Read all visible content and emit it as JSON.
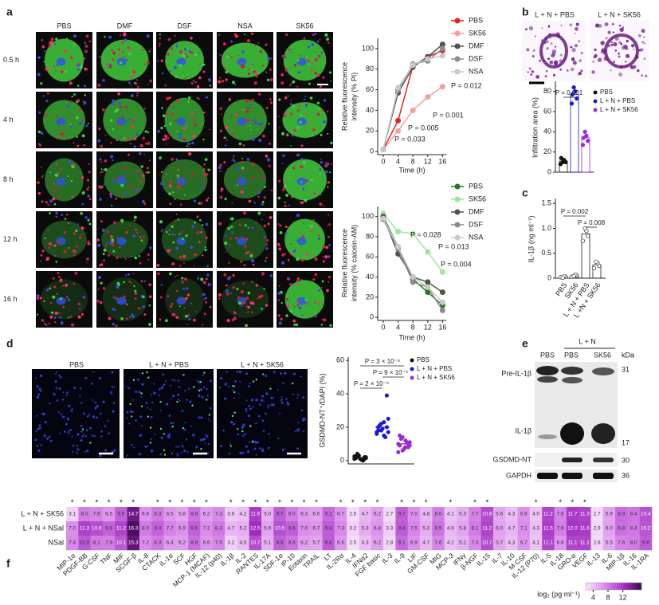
{
  "panel_labels": [
    "a",
    "b",
    "c",
    "d",
    "e",
    "f"
  ],
  "panel_a": {
    "columns": [
      "PBS",
      "DMF",
      "DSF",
      "NSA",
      "SK56"
    ],
    "rows": [
      "0.5 h",
      "4 h",
      "8 h",
      "12 h",
      "16 h"
    ]
  },
  "panel_b": {
    "images": [
      "L + N + PBS",
      "L + N + SK56"
    ]
  },
  "panel_d": {
    "images": [
      "PBS",
      "L + N + PBS",
      "L + N + SK56"
    ]
  },
  "panel_e": {
    "lanes": [
      "PBS",
      "PBS",
      "SK56"
    ],
    "group": "L + N",
    "unit": "kDa",
    "bands": [
      "Pre-IL-1β",
      "IL-1β",
      "GSDMD-NT",
      "GAPDH"
    ],
    "markers": [
      31,
      17,
      30,
      36
    ]
  },
  "chart_data": [
    {
      "type": "line",
      "y_label": [
        "Relative fluorescence",
        "intensity (% PI)"
      ],
      "x_label": "Time (h)",
      "x": [
        0,
        4,
        8,
        12,
        16
      ],
      "xlim": [
        -1.5,
        17
      ],
      "ylim": [
        -3,
        110
      ],
      "xticks": [
        0,
        4,
        8,
        12,
        16
      ],
      "yticks": [
        0,
        20,
        40,
        60,
        80,
        100
      ],
      "series": [
        {
          "name": "PBS",
          "color": "#e8231f",
          "values": [
            2,
            30,
            83,
            92,
            98
          ]
        },
        {
          "name": "SK56",
          "color": "#f4a09a",
          "values": [
            2,
            20,
            40,
            53,
            63
          ]
        },
        {
          "name": "DMF",
          "color": "#505050",
          "values": [
            2,
            57,
            82,
            92,
            104
          ]
        },
        {
          "name": "DSF",
          "color": "#8c8c8c",
          "values": [
            2,
            60,
            85,
            88,
            100
          ]
        },
        {
          "name": "NSA",
          "color": "#c8c8c8",
          "values": [
            2,
            62,
            84,
            90,
            93
          ]
        }
      ],
      "annotations": [
        "P = 0.012",
        "P = 0.001",
        "P = 0.005",
        "P = 0.033"
      ]
    },
    {
      "type": "line",
      "y_label": [
        "Relative fluorescence",
        "intensity (% calcein-AM)"
      ],
      "x_label": "Time (h)",
      "x": [
        0,
        4,
        8,
        12,
        16
      ],
      "xlim": [
        -1.5,
        17
      ],
      "ylim": [
        -3,
        110
      ],
      "xticks": [
        0,
        4,
        8,
        12,
        16
      ],
      "yticks": [
        0,
        20,
        40,
        60,
        80,
        100
      ],
      "series": [
        {
          "name": "PBS",
          "color": "#1f7a1f",
          "values": [
            100,
            70,
            38,
            25,
            12
          ]
        },
        {
          "name": "SK56",
          "color": "#9ee89a",
          "values": [
            103,
            85,
            83,
            65,
            45
          ]
        },
        {
          "name": "DMF",
          "color": "#505050",
          "values": [
            100,
            63,
            40,
            35,
            25
          ]
        },
        {
          "name": "DSF",
          "color": "#8c8c8c",
          "values": [
            97,
            68,
            35,
            30,
            7
          ]
        },
        {
          "name": "NSA",
          "color": "#c8c8c8",
          "values": [
            98,
            70,
            40,
            30,
            15
          ]
        }
      ],
      "annotations": [
        "P = 0.028",
        "P = 0.013",
        "P = 0.004"
      ]
    },
    {
      "type": "strip",
      "y_label": "Infiltration area (%)",
      "ylim": [
        0,
        90
      ],
      "yticks": [
        0,
        20,
        40,
        60,
        80
      ],
      "bars": true,
      "series": [
        {
          "name": "PBS",
          "color": "#111111",
          "values": [
            8,
            10,
            12,
            10,
            14
          ],
          "mean": 11
        },
        {
          "name": "L + N + PBS",
          "color": "#1a1ad6",
          "values": [
            68,
            73,
            80,
            84,
            77
          ],
          "mean": 77
        },
        {
          "name": "L + N + SK56",
          "color": "#9b2bd6",
          "values": [
            27,
            31,
            36,
            40,
            34
          ],
          "mean": 34
        }
      ],
      "annotations": [
        "P = 0.001"
      ]
    },
    {
      "type": "strip",
      "y_label": "IL-1β (ng ml⁻¹)",
      "ylim": [
        0,
        1.6
      ],
      "yticks": [
        0,
        0.5,
        {
          "value": 1,
          "label": "1.0"
        },
        1.5
      ],
      "bars": true,
      "categories": [
        "PBS",
        "SK56",
        "L + N + PBS",
        "L +N + SK56"
      ],
      "series": [
        {
          "color": "#ffffff",
          "values": [
            0.02,
            0.03,
            0.04,
            0.01
          ],
          "mean": 0.03
        },
        {
          "color": "#ffffff",
          "values": [
            0.03,
            0.05,
            0.07,
            0.04
          ],
          "mean": 0.05
        },
        {
          "color": "#ffffff",
          "values": [
            0.75,
            0.85,
            0.95,
            1.0
          ],
          "mean": 0.89
        },
        {
          "color": "#ffffff",
          "values": [
            0.2,
            0.25,
            0.3,
            0.33
          ],
          "mean": 0.27
        }
      ],
      "annotations": [
        "P = 0.002",
        "P = 0.008"
      ]
    },
    {
      "type": "strip",
      "y_label": "GSDMD-NT⁺/DAPI (%)",
      "ylim": [
        -2,
        62
      ],
      "yticks": [
        0,
        20,
        40,
        60
      ],
      "bars": false,
      "series": [
        {
          "name": "PBS",
          "color": "#111111",
          "values": [
            1,
            2,
            0.5,
            3,
            1.5,
            2,
            0,
            1,
            4,
            2.5,
            1,
            0.5,
            3,
            2,
            1.5
          ],
          "mean": 1.7
        },
        {
          "name": "L + N + PBS",
          "color": "#1a1ad6",
          "values": [
            17,
            20,
            15,
            22,
            18,
            25,
            14,
            19,
            21,
            16,
            39,
            23,
            18,
            20,
            17
          ],
          "mean": 20
        },
        {
          "name": "L + N + SK56",
          "color": "#9b2bd6",
          "values": [
            10,
            8,
            12,
            6,
            15,
            9,
            11,
            7,
            13,
            5,
            10,
            8,
            14,
            9,
            11
          ],
          "mean": 10
        }
      ],
      "annotations": [
        "P = 3 × 10⁻⁶",
        "P = 9 × 10⁻⁵",
        "P = 2 × 10⁻⁵"
      ]
    },
    {
      "type": "heatmap",
      "rows": [
        "L + N + SK56",
        "L + N + NSal",
        "NSal"
      ],
      "columns": [
        "MIP-1α",
        "PDGF-BB",
        "G-CSF",
        "TNF",
        "MIF",
        "SCGF-β",
        "IL-8",
        "CTACK",
        "IL-1α",
        "SCF",
        "HGF",
        "MCP-1 (MCAF)",
        "IL-12 (p40)",
        "IL-1β",
        "IL-2",
        "RANTES",
        "IL-17A",
        "SDF-1α",
        "IP-10",
        "Eotaxin",
        "TRAIL",
        "LT",
        "IL-2Rα",
        "IL-4",
        "IFNα2",
        "FGF basic",
        "IL-3",
        "IL-9",
        "LIF",
        "GM-CSF",
        "MIG",
        "MCP-3",
        "IFNγ",
        "β-NGF",
        "IL-15",
        "IL-7",
        "IL-10",
        "M-CSF",
        "IL-12 (P70)",
        "IL-5",
        "IL-18",
        "GRO-α",
        "VEGF",
        "IL-13",
        "IL-6",
        "MIP-1β",
        "IL-16",
        "IL-1RA"
      ],
      "values": [
        [
          3.1,
          8.0,
          7.6,
          6.5,
          9.5,
          14.7,
          6.8,
          8.3,
          6.5,
          5.8,
          8.6,
          6.2,
          7.3,
          3.8,
          4.2,
          11.6,
          5.0,
          9.7,
          8.0,
          6.3,
          6.0,
          9.1,
          6.7,
          2.5,
          4.7,
          6.2,
          2.7,
          9.7,
          7.0,
          4.8,
          8.0,
          4.1,
          5.3,
          7.7,
          10.8,
          5.6,
          4.3,
          6.8,
          4.0,
          11.2,
          7.6,
          11.7,
          11.3,
          2.7,
          5.9,
          8.9,
          8.4,
          10.4
        ],
        [
          7.0,
          11.3,
          10.6,
          9.5,
          11.2,
          16.3,
          8.0,
          9.4,
          7.7,
          6.9,
          9.6,
          7.2,
          8.3,
          4.7,
          5.2,
          12.5,
          5.9,
          10.5,
          9.6,
          7.0,
          6.7,
          9.8,
          7.3,
          3.2,
          5.3,
          6.8,
          3.3,
          9.8,
          7.5,
          5.3,
          8.5,
          4.6,
          5.8,
          8.1,
          11.2,
          6.0,
          4.7,
          7.1,
          4.3,
          11.5,
          7.9,
          12.0,
          11.6,
          2.9,
          6.0,
          8.8,
          8.3,
          10.2
        ],
        [
          7.4,
          10.0,
          8.1,
          7.9,
          10.1,
          15.3,
          7.2,
          8.3,
          6.4,
          6.2,
          8.8,
          6.6,
          7.5,
          3.2,
          4.5,
          10.7,
          5.1,
          9.6,
          8.6,
          6.2,
          5.7,
          9.8,
          6.6,
          2.5,
          4.3,
          6.2,
          2.8,
          9.1,
          6.9,
          4.7,
          7.6,
          4.2,
          5.2,
          7.3,
          10.7,
          5.7,
          4.3,
          6.7,
          4.1,
          11.1,
          6.6,
          11.1,
          11.1,
          2.8,
          5.5,
          7.6,
          8.0,
          9.8
        ]
      ],
      "value_labels": [
        [
          "3.1",
          "8.0",
          "7.6",
          "6.5",
          "9.5",
          "14.7",
          "6.8",
          "8.3",
          "6.5",
          "5.8",
          "8.6",
          "6.2",
          "7.3",
          "3.8",
          "4.2",
          "11.6",
          "5.0",
          "9.7",
          "8.0",
          "6.3",
          "6.0",
          "9.1",
          "6.7",
          "2.5",
          "4.7",
          "6.2",
          "2.7",
          "9.7",
          "7.0",
          "4.8",
          "8.0",
          "4.1",
          "5.3",
          "7.7",
          "10.8",
          "5.6",
          "4.3",
          "6.8",
          "4.0",
          "11.2",
          "7.6",
          "11.7",
          "11.3",
          "2.7",
          "5.9",
          "8.9",
          "8.4",
          "10.4"
        ],
        [
          "7.0",
          "11.3",
          "10.6",
          "9.5",
          "11.2",
          "16.3",
          "8.0",
          "9.4",
          "7.7",
          "6.9",
          "9.6",
          "7.2",
          "8.3",
          "4.7",
          "5.2",
          "12.5",
          "5.9",
          "10.5",
          "9.6",
          "7.0",
          "6.7",
          "9.8",
          "7.3",
          "3.2",
          "5.3",
          "6.8",
          "3.3",
          "9.8",
          "7.5",
          "5.3",
          "8.5",
          "4.6",
          "5.8",
          "8.1",
          "11.2",
          "6.0",
          "4.7",
          "7.1",
          "4.3",
          "11.5",
          "7.9",
          "12.0",
          "11.6",
          "2.9",
          "6.0",
          "8.8",
          "8.3",
          "10.2"
        ],
        [
          "7.4",
          "10.0",
          "8.1",
          "7.9",
          "10.1",
          "15.3",
          "7.2",
          "8.3",
          "6.4",
          "6.2",
          "8.8",
          "6.6",
          "7.5",
          "3.2",
          "4.5",
          "10.7",
          "5.1",
          "9.6",
          "8.6",
          "6.2",
          "5.7",
          "9.8",
          "6.6",
          "2.5",
          "4.3",
          "6.2",
          "2.8",
          "9.1",
          "6.9",
          "4.7",
          "7.6",
          "4.2",
          "5.2",
          "7.3",
          "10.7",
          "5.7",
          "4.3",
          "6.7",
          "4.1",
          "11.1",
          "6.6",
          "11.1",
          "11.1",
          "2.8",
          "5.5",
          "7.6",
          "8.0",
          "9.8"
        ]
      ],
      "stars": [
        "*",
        "*",
        "*",
        "*",
        "*",
        "*",
        null,
        "*",
        "*",
        "*",
        "*",
        "*",
        null,
        "*",
        "*",
        "*",
        "*",
        "*",
        "*",
        "*",
        "*",
        null,
        "*",
        "*",
        "*",
        "*",
        null,
        "*",
        "*",
        "*",
        null,
        "*",
        null,
        "*",
        "*",
        null,
        null,
        null,
        "*",
        null,
        "*",
        "*",
        "*",
        null,
        null,
        null,
        null,
        null
      ],
      "zlim": [
        2,
        17
      ],
      "zticks": [
        4,
        8,
        12
      ],
      "colorbar_label": "log₂ (pg ml⁻¹)"
    }
  ]
}
